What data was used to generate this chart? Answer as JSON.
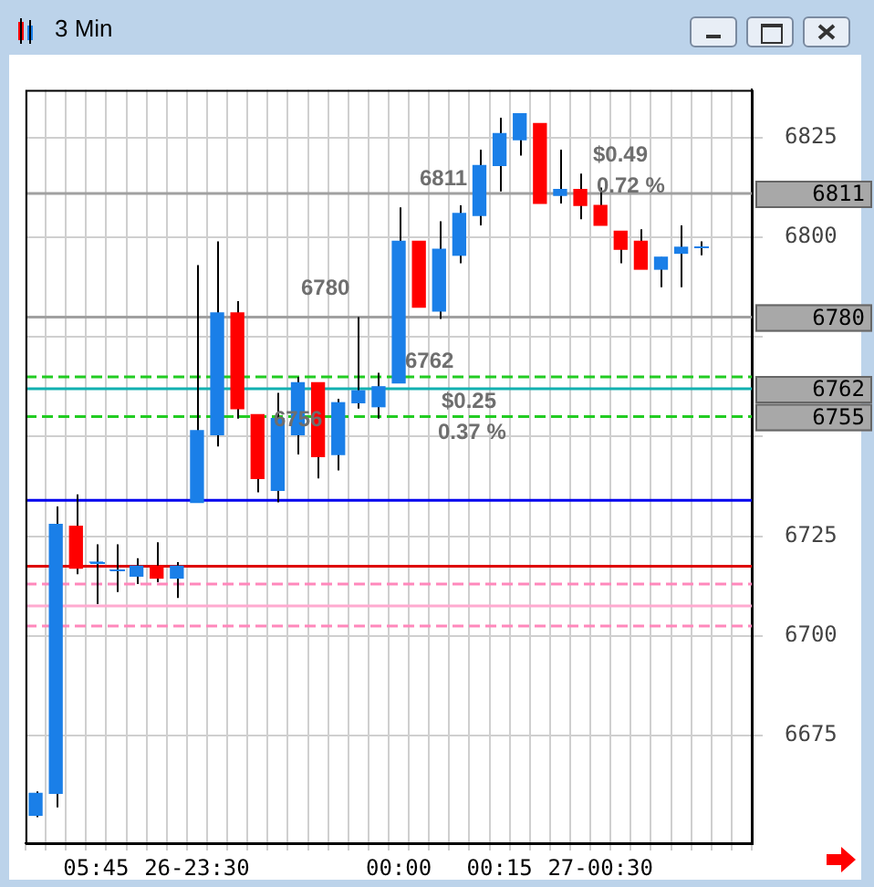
{
  "chart_data": {
    "type": "candlestick",
    "title": "3 Min",
    "categories": [
      null,
      null,
      null,
      "05:45",
      null,
      null,
      null,
      null,
      "26-23:30",
      null,
      null,
      null,
      null,
      null,
      null,
      null,
      null,
      null,
      "00:00",
      null,
      null,
      null,
      null,
      "00:15",
      null,
      null,
      null,
      null,
      "27-00:30",
      null,
      null,
      null,
      null,
      null,
      null,
      null
    ],
    "ohlc": [
      [
        6655,
        6661,
        6654.5,
        6660.5
      ],
      [
        6660.5,
        6732.5,
        6657,
        6728
      ],
      [
        6727.5,
        6735.5,
        6715.5,
        6717
      ],
      [
        6718.5,
        6723,
        6708,
        6718.5
      ],
      [
        6716.5,
        6723,
        6711,
        6716.5
      ],
      [
        6715,
        6719.5,
        6713,
        6717.5
      ],
      [
        6717.5,
        6723.5,
        6713.5,
        6714.5
      ],
      [
        6714.5,
        6718.5,
        6709.5,
        6717.5
      ],
      [
        6733.5,
        6793,
        6733.5,
        6751.5
      ],
      [
        6750.5,
        6799,
        6747.5,
        6781
      ],
      [
        6781,
        6784,
        6754.5,
        6757
      ],
      [
        6755.5,
        6755.5,
        6736,
        6739.5
      ],
      [
        6736.5,
        6761,
        6733.5,
        6754.5
      ],
      [
        6750.5,
        6765,
        6745.5,
        6763.5
      ],
      [
        6763.5,
        6763.5,
        6739.5,
        6745
      ],
      [
        6745.5,
        6759.5,
        6741.5,
        6758.5
      ],
      [
        6758.5,
        6780,
        6757,
        6761.5
      ],
      [
        6757.5,
        6766,
        6754.5,
        6762.5
      ],
      [
        6763.5,
        6807.5,
        6763.5,
        6799
      ],
      [
        6799,
        6799,
        6782.5,
        6782.5
      ],
      [
        6781.5,
        6804,
        6779.5,
        6797
      ],
      [
        6795.5,
        6808,
        6793.5,
        6806
      ],
      [
        6805.5,
        6822,
        6803,
        6818
      ],
      [
        6818,
        6830,
        6811.5,
        6826
      ],
      [
        6824.5,
        6831,
        6820.5,
        6831
      ],
      [
        6828.5,
        6828.5,
        6808.5,
        6808.5
      ],
      [
        6810.5,
        6822,
        6808.5,
        6812
      ],
      [
        6812,
        6816,
        6804.5,
        6808
      ],
      [
        6808,
        6812.5,
        6803,
        6803
      ],
      [
        6801.5,
        6801.5,
        6793.5,
        6797
      ],
      [
        6799,
        6802,
        6792,
        6792
      ],
      [
        6792,
        6795,
        6787.5,
        6795
      ],
      [
        6796,
        6803,
        6787.5,
        6797.5
      ],
      [
        6797.5,
        6799,
        6795.5,
        6797.5
      ],
      null,
      null
    ],
    "colors": [
      "#1a7fe8",
      "#1a7fe8",
      "#ff0000",
      "#1a7fe8",
      "#1a7fe8",
      "#1a7fe8",
      "#ff0000",
      "#1a7fe8",
      "#1a7fe8",
      "#1a7fe8",
      "#ff0000",
      "#ff0000",
      "#1a7fe8",
      "#1a7fe8",
      "#ff0000",
      "#1a7fe8",
      "#1a7fe8",
      "#1a7fe8",
      "#1a7fe8",
      "#ff0000",
      "#1a7fe8",
      "#1a7fe8",
      "#1a7fe8",
      "#1a7fe8",
      "#1a7fe8",
      "#ff0000",
      "#1a7fe8",
      "#ff0000",
      "#ff0000",
      "#ff0000",
      "#ff0000",
      "#1a7fe8",
      "#1a7fe8",
      "#1a7fe8",
      null,
      null
    ],
    "ylim": [
      6648,
      6837
    ],
    "yticks": [
      6675,
      6700,
      6725,
      {
        "value": 6750,
        "label": null
      },
      {
        "value": 6775,
        "label": null
      },
      6800,
      6825
    ],
    "grid": true,
    "ref_lines": [
      {
        "axis": "y",
        "value": 6811,
        "label": "6811",
        "color": "#a0a0a0",
        "line_style": "solid"
      },
      {
        "axis": "y",
        "value": 6780,
        "label": "6780",
        "color": "#a0a0a0",
        "line_style": "solid"
      },
      {
        "axis": "y",
        "value": 6765,
        "color": "#22cc22",
        "line_style": "dashed"
      },
      {
        "axis": "y",
        "value": 6762,
        "label": "6762",
        "color": "#11b0b0",
        "line_style": "solid"
      },
      {
        "axis": "y",
        "value": 6755,
        "label": "6755",
        "color": "#22cc22",
        "line_style": "dashed"
      },
      {
        "axis": "y",
        "value": 6734,
        "color": "#0000ee",
        "line_style": "solid"
      },
      {
        "axis": "y",
        "value": 6717.5,
        "color": "#dd0000",
        "line_style": "solid"
      },
      {
        "axis": "y",
        "value": 6713,
        "color": "#ff88bb",
        "line_style": "dashed"
      },
      {
        "axis": "y",
        "value": 6707.5,
        "color": "#ffaad0",
        "line_style": "solid"
      },
      {
        "axis": "y",
        "value": 6702.5,
        "color": "#ff88bb",
        "line_style": "dashed"
      }
    ],
    "annotations": [
      "$0.49",
      "0.72 %",
      "$0.25",
      "0.37 %",
      "6811",
      "6780",
      "6762",
      "6756"
    ],
    "legend": false
  }
}
